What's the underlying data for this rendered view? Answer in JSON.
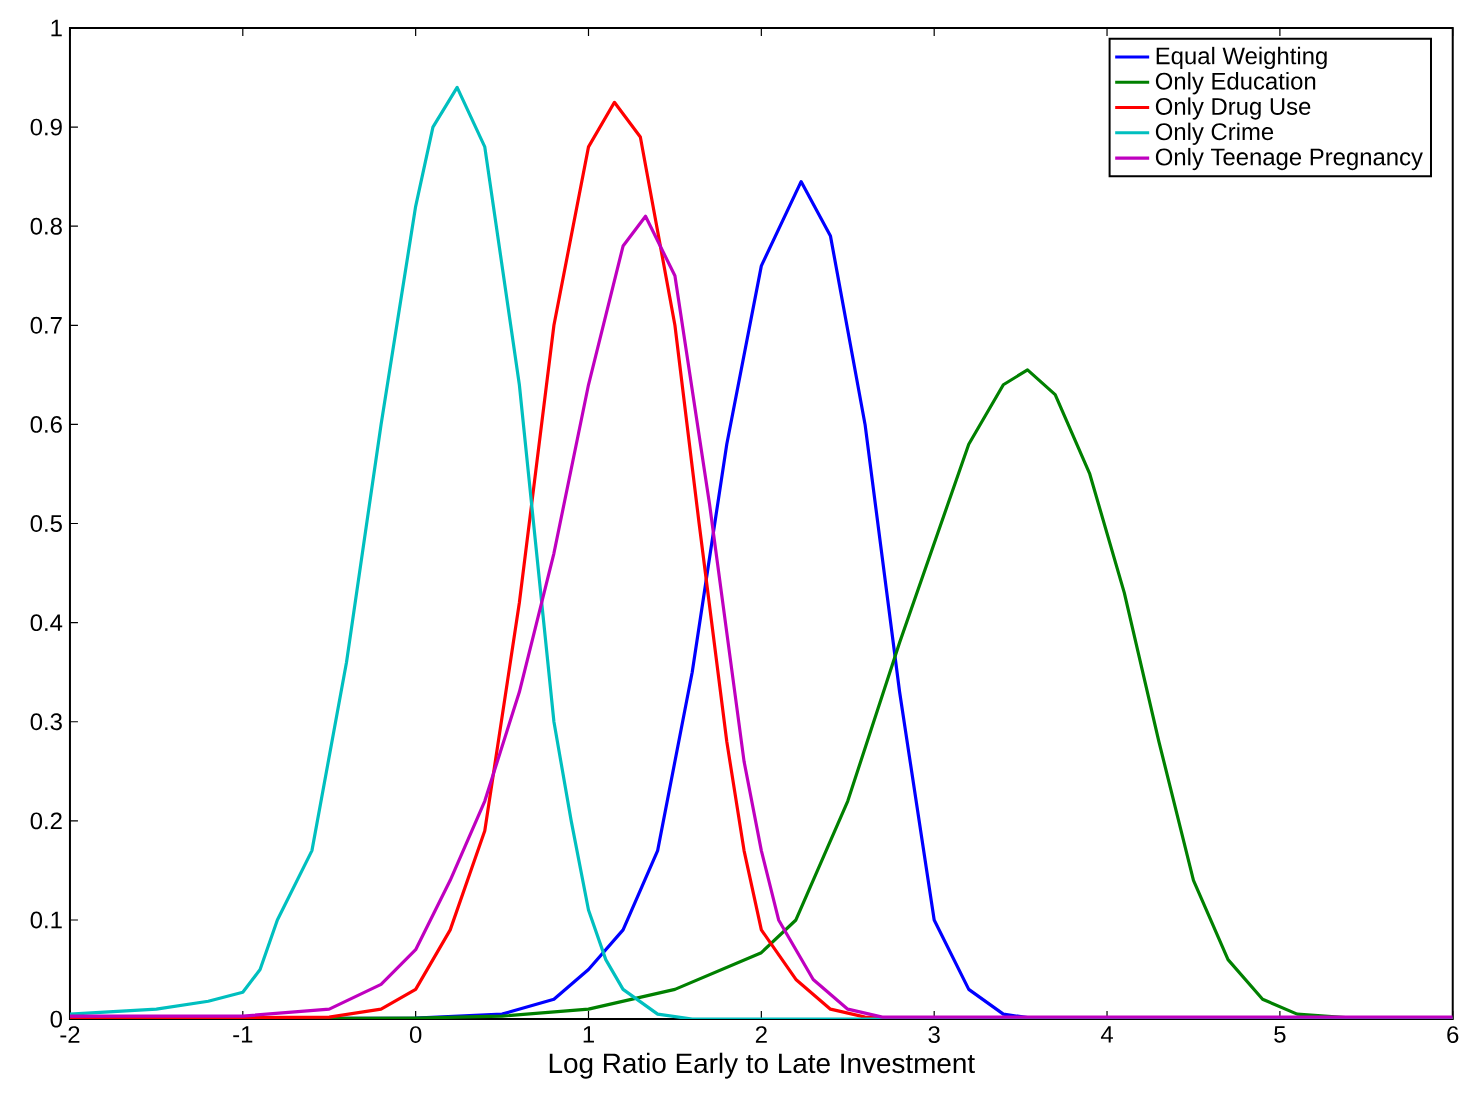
{
  "chart_data": {
    "type": "line",
    "xlabel": "Log Ratio Early to Late Investment",
    "xlim": [
      -2,
      6
    ],
    "ylim": [
      0,
      1
    ],
    "xticks": [
      -2,
      -1,
      0,
      1,
      2,
      3,
      4,
      5,
      6
    ],
    "yticks": [
      0,
      0.1,
      0.2,
      0.3,
      0.4,
      0.5,
      0.6,
      0.7,
      0.8,
      0.9,
      1
    ],
    "grid": false,
    "legend": "top right",
    "marker": "none",
    "line_style": "solid",
    "series": [
      {
        "name": "Equal Weighting",
        "color": "#0000ff",
        "x": [
          -2,
          0,
          0.5,
          0.8,
          1.0,
          1.2,
          1.4,
          1.6,
          1.8,
          2.0,
          2.23,
          2.4,
          2.6,
          2.8,
          3.0,
          3.2,
          3.4,
          3.6,
          6
        ],
        "values": [
          0,
          0.001,
          0.005,
          0.02,
          0.05,
          0.09,
          0.17,
          0.35,
          0.58,
          0.76,
          0.845,
          0.79,
          0.6,
          0.33,
          0.1,
          0.03,
          0.005,
          0,
          0
        ]
      },
      {
        "name": "Only Education",
        "color": "#008000",
        "x": [
          -2,
          0,
          0.5,
          1,
          1.5,
          2,
          2.2,
          2.5,
          2.8,
          3.0,
          3.2,
          3.4,
          3.54,
          3.7,
          3.9,
          4.1,
          4.3,
          4.5,
          4.7,
          4.9,
          5.1,
          5.5,
          6
        ],
        "values": [
          0,
          0.001,
          0.003,
          0.01,
          0.03,
          0.067,
          0.1,
          0.22,
          0.38,
          0.48,
          0.58,
          0.64,
          0.655,
          0.63,
          0.55,
          0.43,
          0.28,
          0.14,
          0.06,
          0.02,
          0.005,
          0,
          0
        ]
      },
      {
        "name": "Only Drug Use",
        "color": "#ff0000",
        "x": [
          -2,
          -0.5,
          -0.2,
          0,
          0.2,
          0.4,
          0.6,
          0.8,
          1.0,
          1.15,
          1.3,
          1.5,
          1.64,
          1.8,
          1.9,
          2.0,
          2.2,
          2.4,
          2.6,
          3,
          6
        ],
        "values": [
          0,
          0.002,
          0.01,
          0.03,
          0.09,
          0.19,
          0.42,
          0.7,
          0.88,
          0.925,
          0.89,
          0.7,
          0.5,
          0.28,
          0.17,
          0.09,
          0.04,
          0.01,
          0.002,
          0,
          0
        ]
      },
      {
        "name": "Only Crime",
        "color": "#00bfbf",
        "x": [
          -2,
          -1.5,
          -1.2,
          -1,
          -0.9,
          -0.8,
          -0.6,
          -0.4,
          -0.2,
          0,
          0.1,
          0.24,
          0.4,
          0.6,
          0.8,
          0.9,
          1.0,
          1.1,
          1.2,
          1.4,
          1.6,
          6
        ],
        "values": [
          0.005,
          0.01,
          0.018,
          0.027,
          0.05,
          0.1,
          0.17,
          0.36,
          0.6,
          0.82,
          0.9,
          0.94,
          0.88,
          0.64,
          0.3,
          0.2,
          0.11,
          0.06,
          0.03,
          0.005,
          0,
          0
        ]
      },
      {
        "name": "Only Teenage Pregnancy",
        "color": "#bf00bf",
        "x": [
          -2,
          -1,
          -0.5,
          -0.2,
          0,
          0.2,
          0.4,
          0.6,
          0.8,
          1.0,
          1.2,
          1.33,
          1.5,
          1.7,
          1.9,
          2.0,
          2.1,
          2.3,
          2.5,
          2.7,
          3,
          6
        ],
        "values": [
          0.003,
          0.003,
          0.01,
          0.035,
          0.07,
          0.14,
          0.22,
          0.33,
          0.47,
          0.64,
          0.78,
          0.81,
          0.75,
          0.52,
          0.26,
          0.17,
          0.1,
          0.04,
          0.01,
          0.002,
          0.002,
          0.002
        ]
      }
    ]
  }
}
